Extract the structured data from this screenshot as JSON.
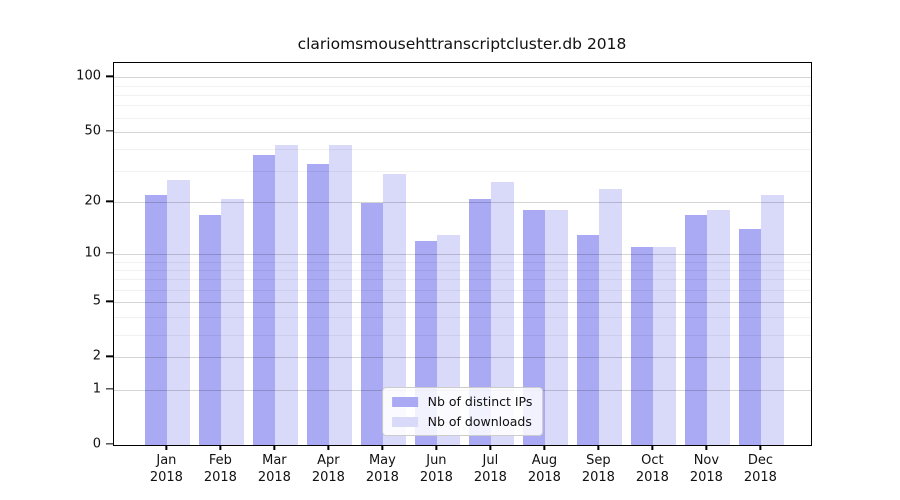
{
  "title": "clariomsmousehttranscriptcluster.db 2018",
  "colors": {
    "distinct_ips_bar": "#a9a9f4",
    "downloads_bar": "#d9d9fa",
    "axis": "#000000",
    "grid_major": "rgba(0,0,0,0.17)",
    "grid_minor": "rgba(0,0,0,0.055)"
  },
  "legend": {
    "items": [
      {
        "label": "Nb of distinct IPs",
        "color": "#a9a9f4"
      },
      {
        "label": "Nb of downloads",
        "color": "#d9d9fa"
      }
    ]
  },
  "x_axis": {
    "year": "2018",
    "months": [
      "Jan",
      "Feb",
      "Mar",
      "Apr",
      "May",
      "Jun",
      "Jul",
      "Aug",
      "Sep",
      "Oct",
      "Nov",
      "Dec"
    ]
  },
  "y_axis": {
    "tick_labels": [
      "0",
      "1",
      "2",
      "5",
      "10",
      "20",
      "50",
      "100"
    ],
    "tick_values": [
      0,
      1,
      2,
      5,
      10,
      20,
      50,
      100
    ],
    "minor_values": [
      3,
      4,
      6,
      7,
      8,
      9,
      30,
      40,
      60,
      70,
      80,
      90
    ],
    "scale": "log1p",
    "max_value": 120
  },
  "chart_data": {
    "type": "bar",
    "title": "clariomsmousehttranscriptcluster.db 2018",
    "categories": [
      "Jan 2018",
      "Feb 2018",
      "Mar 2018",
      "Apr 2018",
      "May 2018",
      "Jun 2018",
      "Jul 2018",
      "Aug 2018",
      "Sep 2018",
      "Oct 2018",
      "Nov 2018",
      "Dec 2018"
    ],
    "series": [
      {
        "name": "Nb of distinct IPs",
        "color": "#a9a9f4",
        "values": [
          22,
          17,
          37,
          33,
          20,
          12,
          21,
          18,
          13,
          11,
          17,
          14
        ]
      },
      {
        "name": "Nb of downloads",
        "color": "#d9d9fa",
        "values": [
          27,
          21,
          42,
          42,
          29,
          13,
          26,
          18,
          24,
          11,
          18,
          22
        ]
      }
    ],
    "xlabel": "",
    "ylabel": "",
    "y_scale": "log1p",
    "ylim": [
      0,
      120
    ],
    "y_ticks": [
      0,
      1,
      2,
      5,
      10,
      20,
      50,
      100
    ],
    "grid": true,
    "grid_over_bars": true,
    "legend_position": "lower center"
  }
}
